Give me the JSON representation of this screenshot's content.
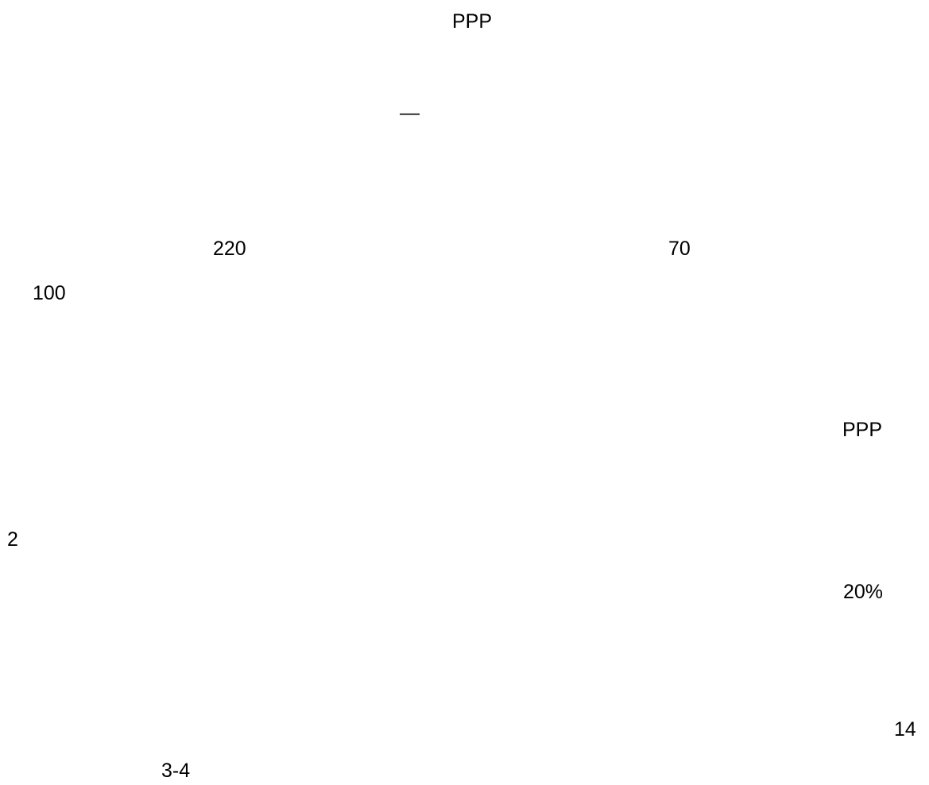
{
  "document": {
    "title": "PPP",
    "fragments": {
      "dash": "—",
      "value_220": "220",
      "value_70": "70",
      "value_100": "100",
      "ppp_label": "PPP",
      "value_2": "2",
      "percent_20": "20%",
      "value_14": "14",
      "range_3_4": "3-4"
    }
  }
}
